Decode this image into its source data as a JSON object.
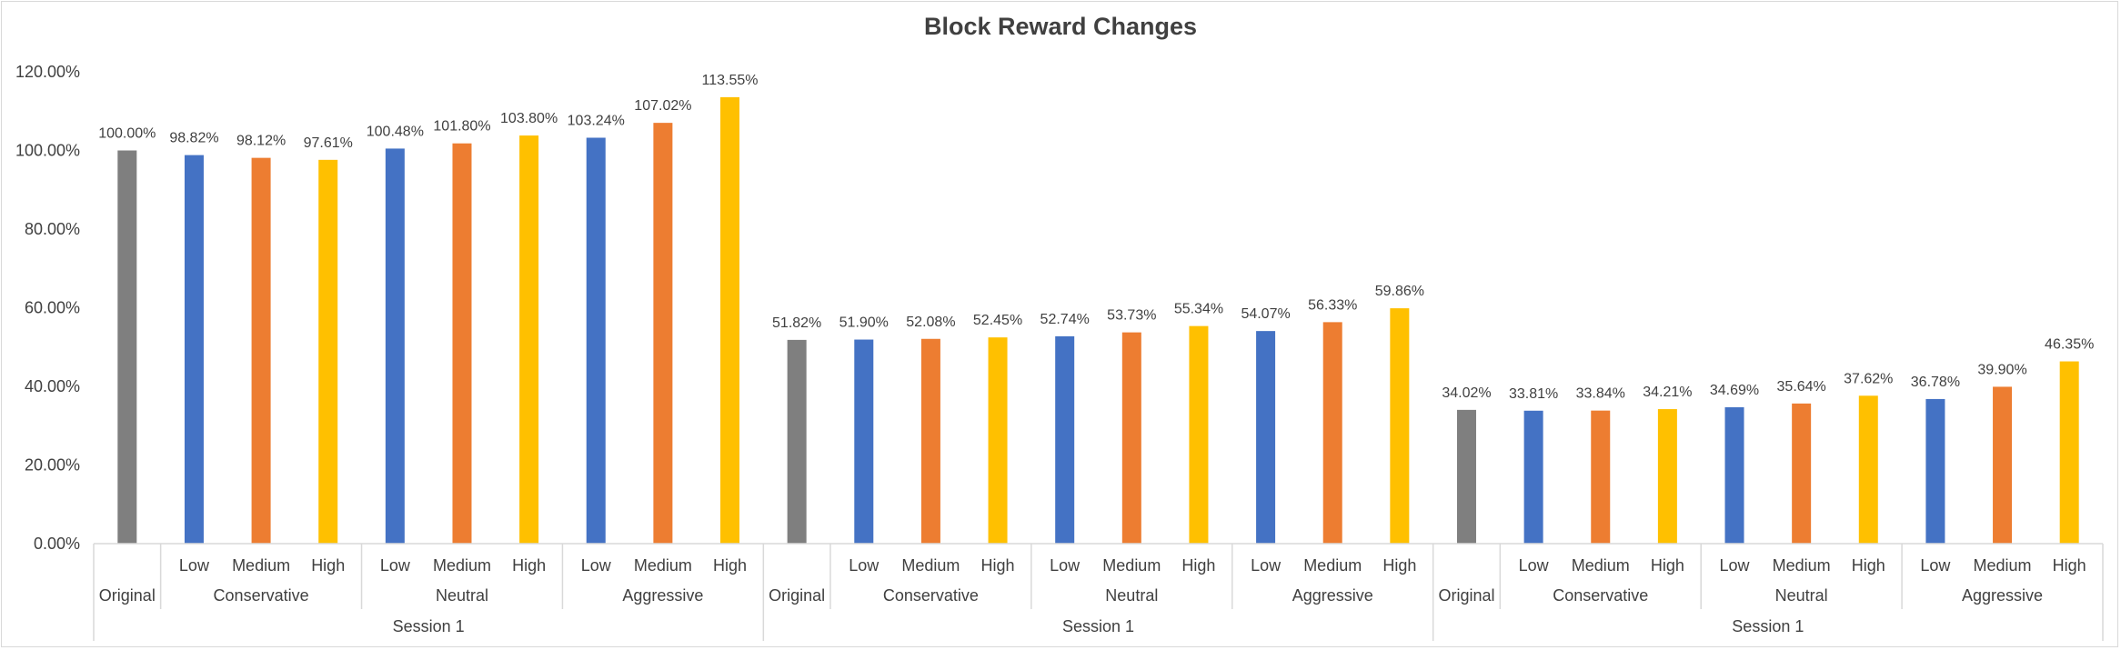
{
  "chart_data": {
    "type": "bar",
    "title": "Block Reward Changes",
    "ylim": [
      0,
      120
    ],
    "ytick_labels": [
      "0.00%",
      "20.00%",
      "40.00%",
      "60.00%",
      "80.00%",
      "100.00%",
      "120.00%"
    ],
    "grid": false,
    "legend": "none",
    "categories": [
      [
        "Original",
        "",
        "Session 1"
      ],
      [
        "Low",
        "Conservative",
        "Session 1"
      ],
      [
        "Medium",
        "Conservative",
        "Session 1"
      ],
      [
        "High",
        "Conservative",
        "Session 1"
      ],
      [
        "Low",
        "Neutral",
        "Session 1"
      ],
      [
        "Medium",
        "Neutral",
        "Session 1"
      ],
      [
        "High",
        "Neutral",
        "Session 1"
      ],
      [
        "Low",
        "Aggressive",
        "Session 1"
      ],
      [
        "Medium",
        "Aggressive",
        "Session 1"
      ],
      [
        "High",
        "Aggressive",
        "Session 1"
      ],
      [
        "Original",
        "",
        "Session 1"
      ],
      [
        "Low",
        "Conservative",
        "Session 1"
      ],
      [
        "Medium",
        "Conservative",
        "Session 1"
      ],
      [
        "High",
        "Conservative",
        "Session 1"
      ],
      [
        "Low",
        "Neutral",
        "Session 1"
      ],
      [
        "Medium",
        "Neutral",
        "Session 1"
      ],
      [
        "High",
        "Neutral",
        "Session 1"
      ],
      [
        "Low",
        "Aggressive",
        "Session 1"
      ],
      [
        "Medium",
        "Aggressive",
        "Session 1"
      ],
      [
        "High",
        "Aggressive",
        "Session 1"
      ],
      [
        "Original",
        "",
        "Session 1"
      ],
      [
        "Low",
        "Conservative",
        "Session 1"
      ],
      [
        "Medium",
        "Conservative",
        "Session 1"
      ],
      [
        "High",
        "Conservative",
        "Session 1"
      ],
      [
        "Low",
        "Neutral",
        "Session 1"
      ],
      [
        "Medium",
        "Neutral",
        "Session 1"
      ],
      [
        "High",
        "Neutral",
        "Session 1"
      ],
      [
        "Low",
        "Aggressive",
        "Session 1"
      ],
      [
        "Medium",
        "Aggressive",
        "Session 1"
      ],
      [
        "High",
        "Aggressive",
        "Session 1"
      ]
    ],
    "values": [
      100.0,
      98.82,
      98.12,
      97.61,
      100.48,
      101.8,
      103.8,
      103.24,
      107.02,
      113.55,
      51.82,
      51.9,
      52.08,
      52.45,
      52.74,
      53.73,
      55.34,
      54.07,
      56.33,
      59.86,
      34.02,
      33.81,
      33.84,
      34.21,
      34.69,
      35.64,
      37.62,
      36.78,
      39.9,
      46.35
    ],
    "data_labels": [
      "100.00%",
      "98.82%",
      "98.12%",
      "97.61%",
      "100.48%",
      "101.80%",
      "103.80%",
      "103.24%",
      "107.02%",
      "113.55%",
      "51.82%",
      "51.90%",
      "52.08%",
      "52.45%",
      "52.74%",
      "53.73%",
      "55.34%",
      "54.07%",
      "56.33%",
      "59.86%",
      "34.02%",
      "33.81%",
      "33.84%",
      "34.21%",
      "34.69%",
      "35.64%",
      "37.62%",
      "36.78%",
      "39.90%",
      "46.35%"
    ],
    "colors": {
      "Original": "#7f7f7f",
      "Low": "#4472c4",
      "Medium": "#ed7d31",
      "High": "#ffc000"
    }
  }
}
